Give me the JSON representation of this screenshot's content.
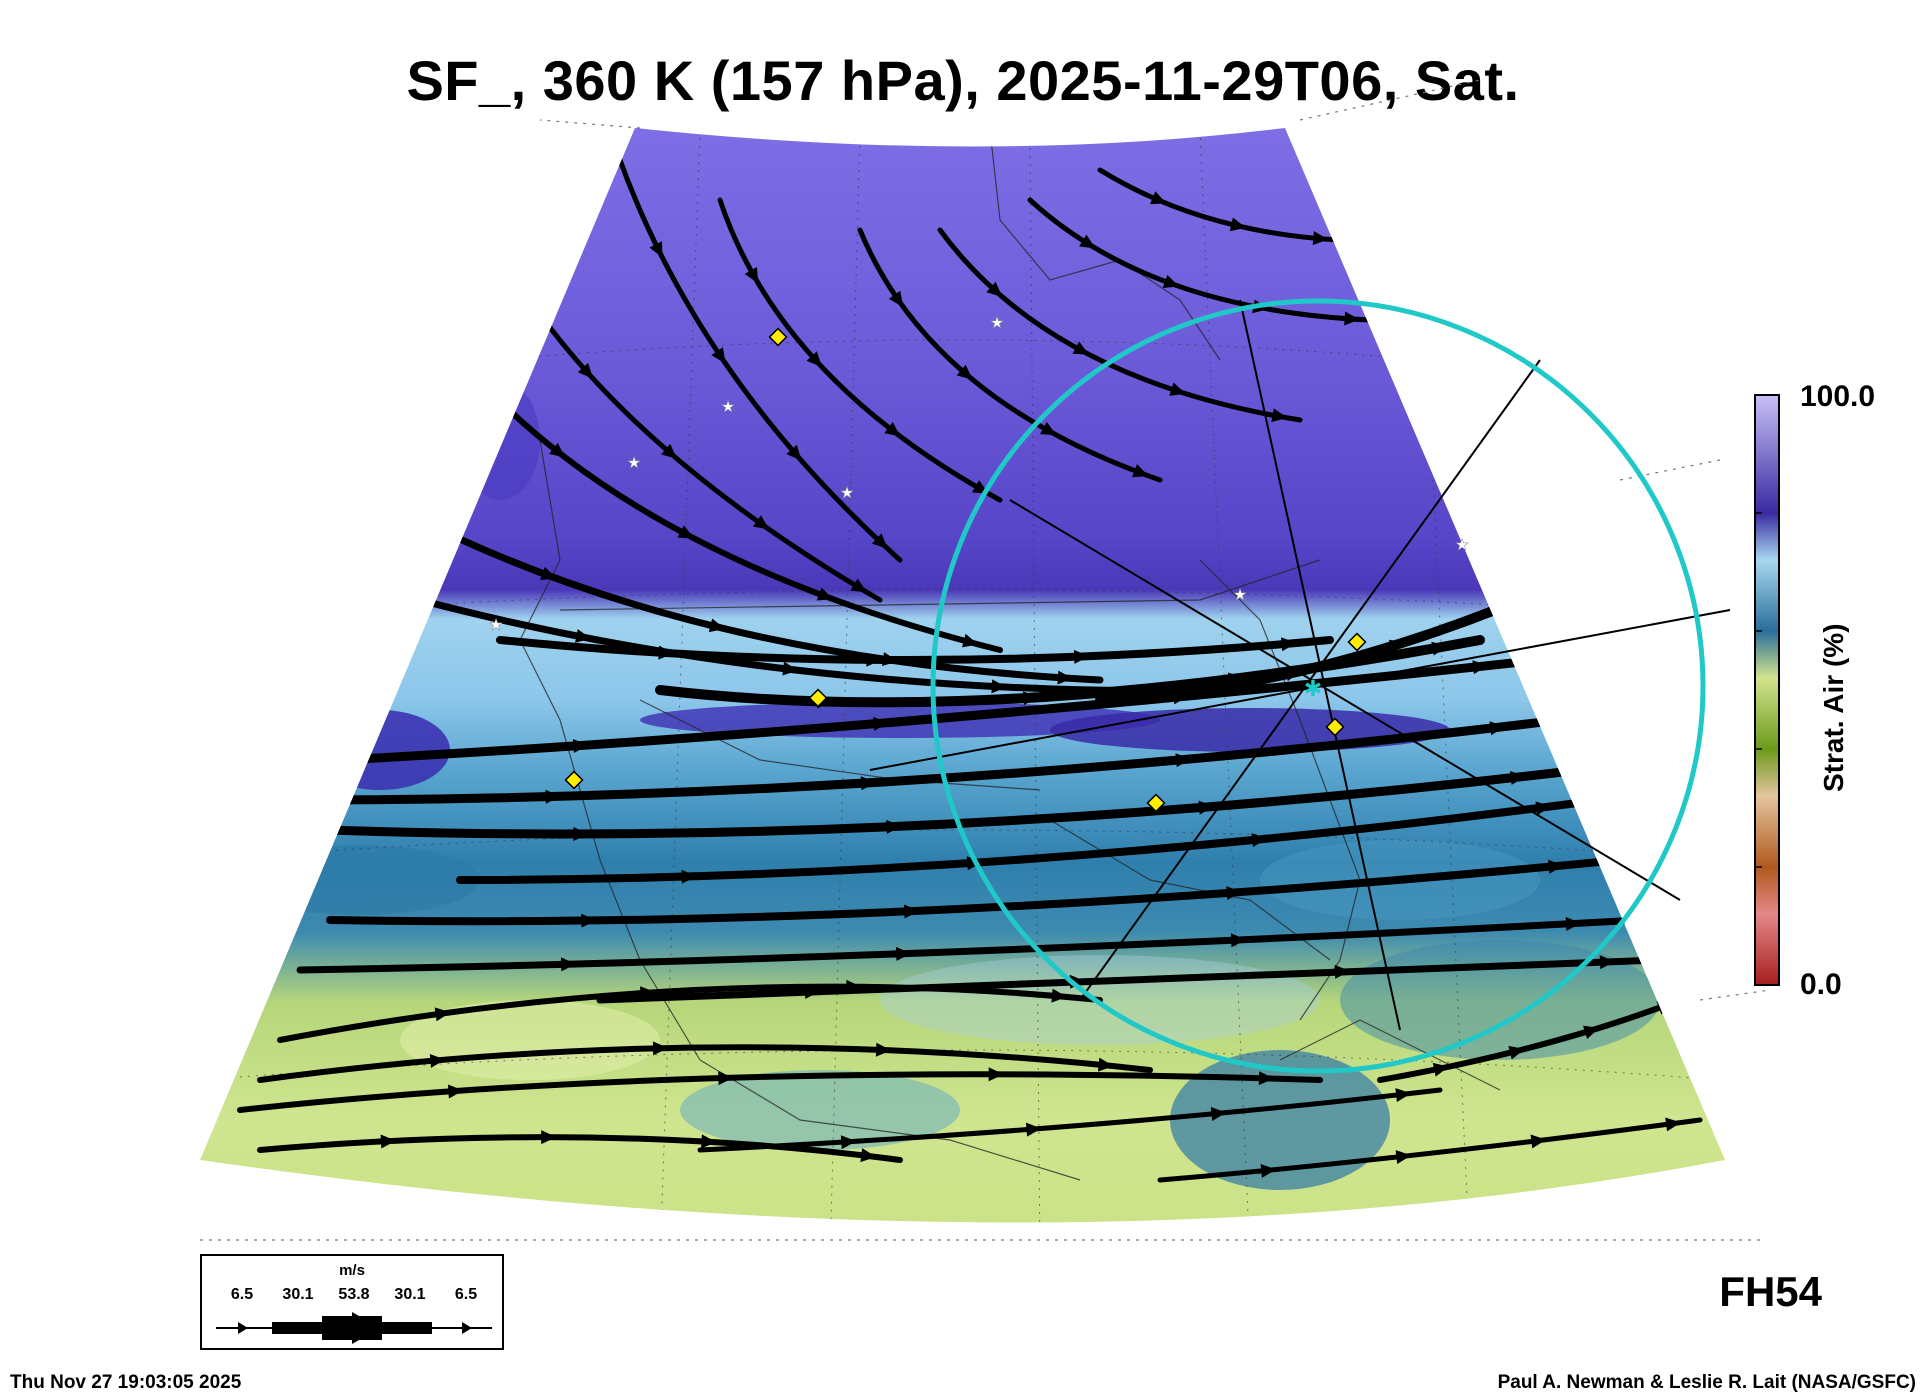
{
  "title": "SF_, 360 K (157 hPa), 2025-11-29T06, Sat.",
  "colorbar": {
    "max_label": "100.0",
    "min_label": "0.0",
    "axis_label": "Strat. Air (%)",
    "colors": [
      "#a52a2a",
      "#e07a7a",
      "#f0b8b8",
      "#9b5a1e",
      "#c88a4e",
      "#e2c4a0",
      "#6a9a1a",
      "#9cc23a",
      "#cfe08a",
      "#2a6e9a",
      "#4f9cc8",
      "#a8d8f0",
      "#3a2aa0",
      "#5a48d0",
      "#9a8ef0"
    ]
  },
  "forecast_hour": "FH54",
  "timestamp": "Thu Nov 27 19:03:05 2025",
  "credit": "Paul A. Newman & Leslie R. Lait (NASA/GSFC)",
  "wind_legend": {
    "unit": "m/s",
    "values": [
      "6.5",
      "30.1",
      "53.8",
      "30.1",
      "6.5"
    ]
  },
  "map_marks": {
    "diamond_color": "#ffee00",
    "star_color": "#ffffff",
    "circle_color": "#20c8c8"
  }
}
